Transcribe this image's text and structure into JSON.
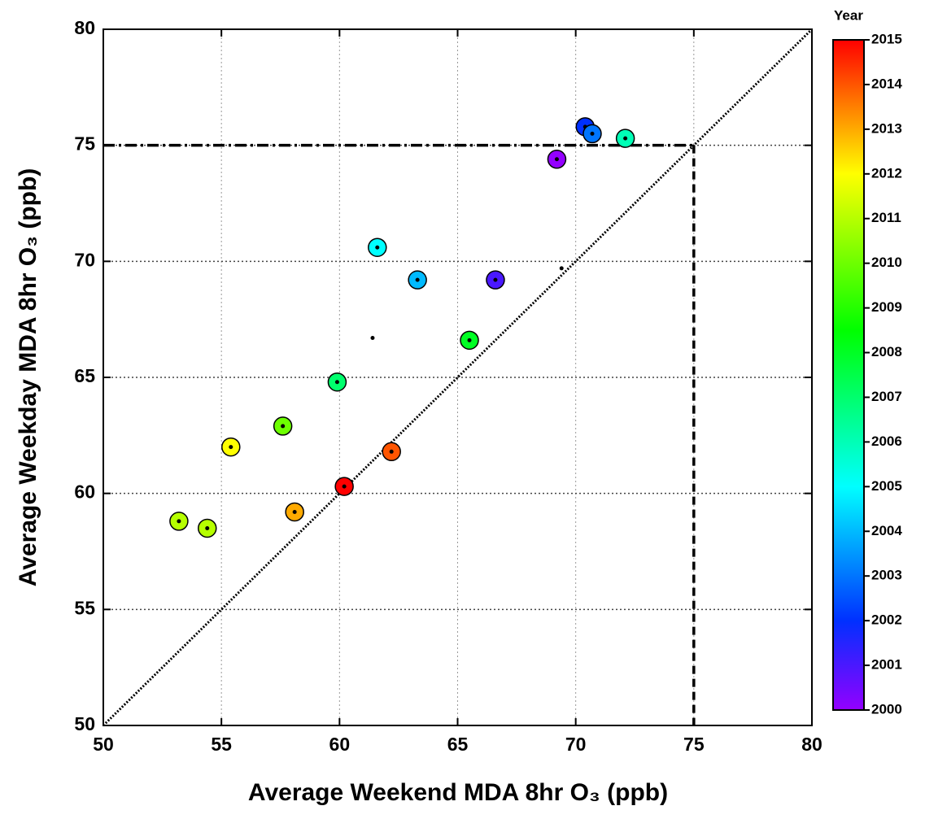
{
  "chart_data": {
    "type": "scatter",
    "xlabel": "Average Weekend MDA 8hr O₃ (ppb)",
    "ylabel": "Average Weekday MDA 8hr O₃ (ppb)",
    "xlim": [
      50,
      80
    ],
    "ylim": [
      50,
      80
    ],
    "xticks": [
      50,
      55,
      60,
      65,
      70,
      75,
      80
    ],
    "yticks": [
      50,
      55,
      60,
      65,
      70,
      75,
      80
    ],
    "grid": true,
    "reference": {
      "x": 75,
      "y": 75
    },
    "series": [
      {
        "x": [
          53.2,
          54.4,
          55.4,
          57.6,
          58.1,
          59.9,
          60.2,
          61.6,
          62.2,
          63.3,
          65.5,
          66.6,
          69.2,
          70.4,
          70.7,
          72.1
        ],
        "y": [
          58.8,
          58.5,
          62.0,
          62.9,
          59.2,
          64.8,
          60.3,
          70.6,
          61.8,
          69.2,
          66.6,
          69.2,
          74.4,
          75.8,
          75.5,
          75.3
        ],
        "year": [
          2011,
          2011,
          2012,
          2010,
          2013,
          2007,
          2015,
          2005,
          2014,
          2004,
          2008,
          2001,
          2000,
          2002,
          2003,
          2006
        ]
      },
      {
        "x": [
          61.4,
          69.4
        ],
        "y": [
          66.7,
          69.7
        ]
      }
    ],
    "colorbar": {
      "label": "Year",
      "lim": [
        2000,
        2015
      ],
      "ticks": [
        2000,
        2001,
        2002,
        2003,
        2004,
        2005,
        2006,
        2007,
        2008,
        2009,
        2010,
        2011,
        2012,
        2013,
        2014,
        2015
      ],
      "stops": [
        [
          2000,
          "#9400ff"
        ],
        [
          2002,
          "#0030ff"
        ],
        [
          2005,
          "#00ffff"
        ],
        [
          2008.5,
          "#00ff00"
        ],
        [
          2012,
          "#ffff00"
        ],
        [
          2015,
          "#ff0000"
        ]
      ]
    }
  }
}
